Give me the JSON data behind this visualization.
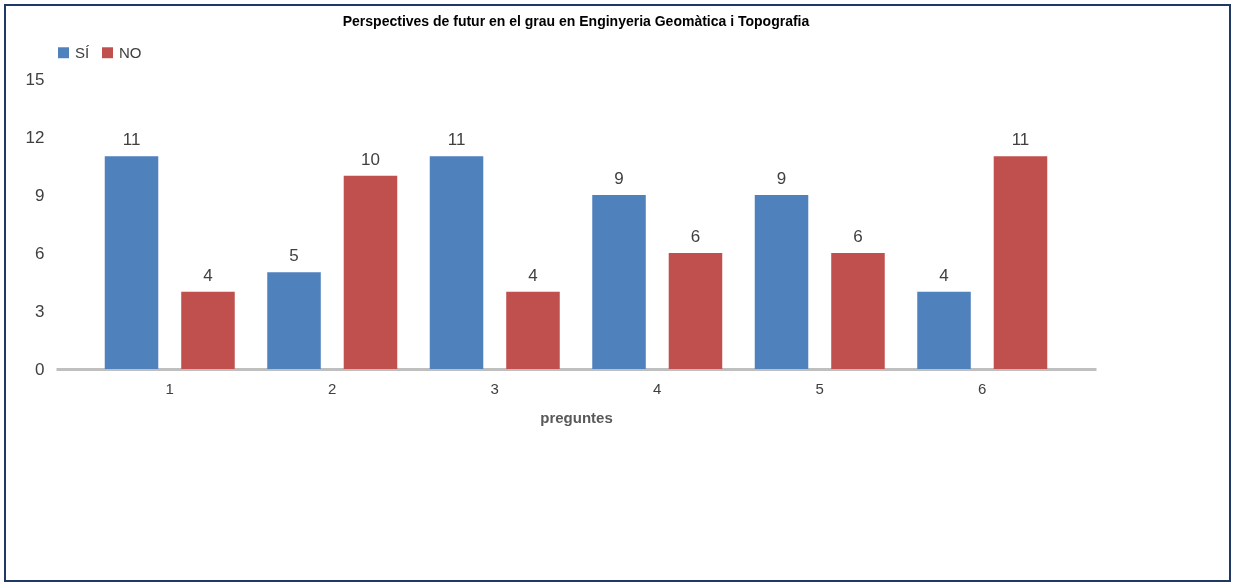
{
  "chart_data": {
    "type": "bar",
    "title": "Perspectives de futur en el grau en Enginyeria Geomàtica i Topografia",
    "xlabel": "preguntes",
    "categories": [
      "1",
      "2",
      "3",
      "4",
      "5",
      "6"
    ],
    "series": [
      {
        "name": "SÍ",
        "color": "#4f81bd",
        "values": [
          11,
          5,
          11,
          9,
          9,
          4
        ]
      },
      {
        "name": "NO",
        "color": "#c0504d",
        "values": [
          4,
          10,
          4,
          6,
          6,
          11
        ]
      }
    ],
    "ylim": [
      0,
      15
    ],
    "yticks": [
      0,
      3,
      6,
      9,
      12,
      15
    ],
    "grid": false,
    "legend": "top",
    "data_labels": true
  }
}
